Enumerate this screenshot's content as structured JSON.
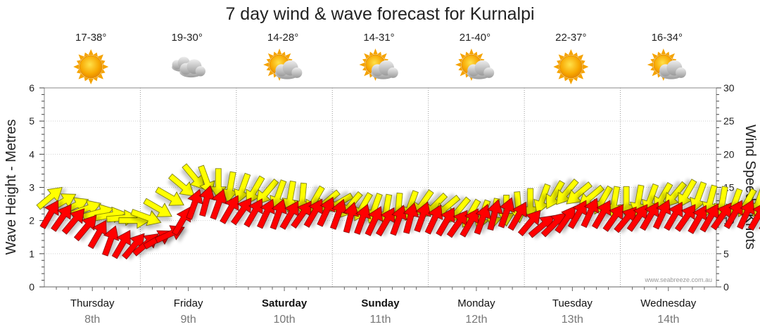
{
  "chart_data": {
    "type": "scatter",
    "title": "7 day wind & wave forecast for Kurnalpi",
    "ylabel_left": "Wave Height - Metres",
    "ylabel_right": "Wind Speed - Knots",
    "ylim_left": [
      0,
      6
    ],
    "ylim_right": [
      0,
      30
    ],
    "left_ticks": [
      "0",
      "1",
      "2",
      "3",
      "4",
      "5",
      "6"
    ],
    "right_ticks": [
      "0",
      "5",
      "10",
      "15",
      "20",
      "25",
      "30"
    ],
    "grid": true,
    "credit": "www.seabreeze.com.au",
    "days": [
      {
        "name": "Thursday",
        "date": "8th",
        "temp": "17-38°",
        "icon": "sun-icon",
        "bold": false
      },
      {
        "name": "Friday",
        "date": "9th",
        "temp": "19-30°",
        "icon": "cloud-icon",
        "bold": false
      },
      {
        "name": "Saturday",
        "date": "10th",
        "temp": "14-28°",
        "icon": "partly-cloudy-icon",
        "bold": true
      },
      {
        "name": "Sunday",
        "date": "11th",
        "temp": "14-31°",
        "icon": "partly-cloudy-icon",
        "bold": true
      },
      {
        "name": "Monday",
        "date": "12th",
        "temp": "21-40°",
        "icon": "partly-cloudy-icon",
        "bold": false
      },
      {
        "name": "Tuesday",
        "date": "13th",
        "temp": "22-37°",
        "icon": "sun-icon",
        "bold": false
      },
      {
        "name": "Wednesday",
        "date": "14th",
        "temp": "16-34°",
        "icon": "partly-cloudy-icon",
        "bold": false
      }
    ],
    "series": [
      {
        "name": "Wind",
        "color": "#ffff00",
        "points_per_day": 8,
        "speed_knots": [
          13.5,
          12.8,
          12.2,
          11.8,
          11.2,
          10.8,
          10.4,
          10.0,
          10.5,
          11.8,
          13.5,
          15.2,
          16.5,
          16.0,
          15.5,
          15.0,
          14.8,
          14.5,
          14.2,
          13.8,
          13.6,
          13.3,
          13.0,
          12.8,
          12.6,
          12.3,
          12.0,
          11.8,
          11.6,
          11.8,
          12.2,
          12.5,
          12.2,
          12.0,
          11.5,
          11.0,
          10.8,
          11.0,
          11.5,
          12.0,
          12.5,
          13.2,
          13.8,
          14.2,
          14.0,
          13.5,
          13.0,
          12.8,
          12.8,
          13.0,
          13.2,
          13.5,
          13.8,
          14.0,
          13.5,
          13.0,
          12.8,
          12.5,
          12.6,
          12.8,
          12.5,
          12.2,
          12.0,
          11.8
        ],
        "direction_deg": [
          320,
          330,
          335,
          340,
          345,
          350,
          355,
          0,
          20,
          30,
          30,
          40,
          50,
          70,
          90,
          100,
          110,
          120,
          130,
          110,
          100,
          95,
          120,
          140,
          150,
          130,
          120,
          110,
          100,
          95,
          110,
          125,
          135,
          140,
          130,
          120,
          110,
          100,
          90,
          85,
          90,
          110,
          120,
          130,
          140,
          140,
          120,
          100,
          90,
          100,
          110,
          120,
          130,
          120,
          110,
          105,
          100,
          110,
          120,
          110,
          100,
          110,
          120,
          110
        ]
      },
      {
        "name": "Wave",
        "color": "#ff0000",
        "points_per_day": 8,
        "height_m": [
          2.2,
          2.1,
          2.0,
          1.8,
          1.6,
          1.4,
          1.3,
          1.25,
          1.3,
          1.45,
          1.6,
          2.0,
          2.5,
          2.6,
          2.5,
          2.35,
          2.3,
          2.25,
          2.22,
          2.2,
          2.18,
          2.2,
          2.24,
          2.28,
          2.2,
          2.1,
          2.05,
          2.0,
          1.98,
          2.02,
          2.08,
          2.12,
          2.05,
          1.98,
          1.92,
          1.95,
          2.05,
          2.18,
          2.25,
          2.15,
          1.95,
          1.85,
          1.9,
          2.05,
          2.2,
          2.25,
          2.2,
          2.1,
          2.05,
          2.1,
          2.15,
          2.2,
          2.15,
          2.1,
          2.05,
          2.1,
          2.15,
          2.2,
          2.2,
          2.15,
          2.1,
          2.05,
          2.0,
          2.0
        ],
        "direction_deg": [
          300,
          305,
          310,
          310,
          300,
          290,
          300,
          310,
          320,
          330,
          335,
          300,
          290,
          285,
          290,
          300,
          305,
          300,
          295,
          290,
          300,
          305,
          300,
          295,
          290,
          285,
          290,
          295,
          300,
          290,
          285,
          290,
          295,
          300,
          305,
          300,
          290,
          285,
          290,
          300,
          310,
          320,
          315,
          305,
          300,
          295,
          300,
          305,
          310,
          305,
          300,
          295,
          300,
          305,
          300,
          300,
          305,
          300,
          295,
          300,
          305,
          300,
          300,
          305
        ]
      }
    ]
  }
}
